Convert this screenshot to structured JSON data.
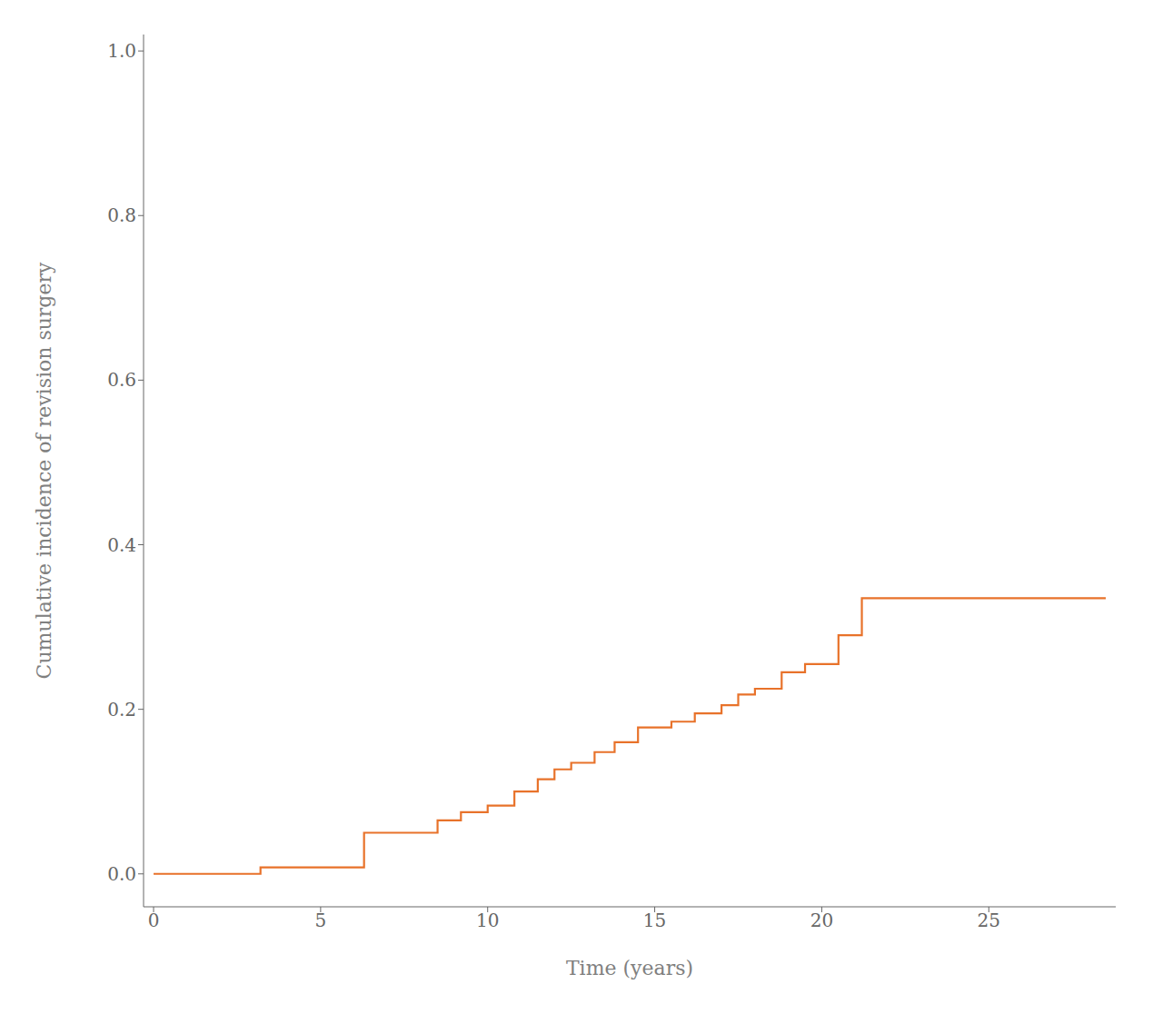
{
  "chart_data": {
    "type": "step",
    "x": [
      0,
      3.2,
      5.8,
      6.3,
      7.5,
      8.5,
      9.2,
      10.0,
      10.8,
      11.5,
      12.0,
      12.5,
      13.2,
      13.8,
      14.5,
      15.5,
      16.2,
      17.0,
      17.5,
      18.0,
      18.8,
      19.5,
      20.5,
      21.2,
      28.5
    ],
    "values": [
      0.0,
      0.008,
      0.008,
      0.05,
      0.05,
      0.065,
      0.075,
      0.083,
      0.1,
      0.115,
      0.127,
      0.135,
      0.148,
      0.16,
      0.178,
      0.185,
      0.195,
      0.205,
      0.218,
      0.225,
      0.245,
      0.255,
      0.29,
      0.335,
      0.335
    ],
    "color": "#E8722A",
    "xlabel": "Time (years)",
    "ylabel": "Cumulative incidence of revision surgery",
    "xlim": [
      -0.3,
      28.8
    ],
    "ylim": [
      -0.04,
      1.02
    ],
    "xticks": [
      0,
      5,
      10,
      15,
      20,
      25
    ],
    "yticks": [
      {
        "value": 0.0,
        "label": "0.0"
      },
      0.2,
      0.4,
      0.6,
      0.8,
      {
        "value": 1.0,
        "label": "1.0"
      }
    ],
    "grid": false
  }
}
